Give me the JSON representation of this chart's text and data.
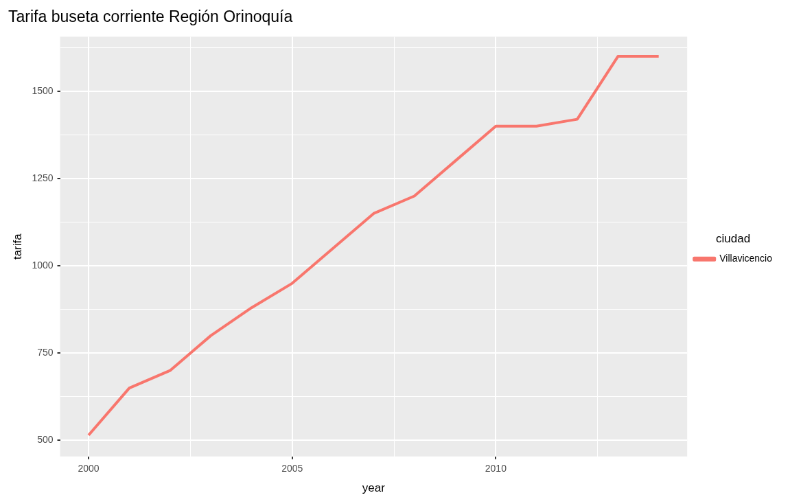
{
  "chart_data": {
    "type": "line",
    "title": "Tarifa buseta corriente Región Orinoquía",
    "xlabel": "year",
    "ylabel": "tarifa",
    "legend_title": "ciudad",
    "legend": "right",
    "grid": true,
    "marker": "none",
    "line_style": "solid",
    "x": [
      2000,
      2001,
      2002,
      2003,
      2004,
      2005,
      2006,
      2007,
      2008,
      2009,
      2010,
      2011,
      2012,
      2013,
      2014
    ],
    "series": [
      {
        "name": "Villavicencio",
        "color": "#f8766d",
        "values": [
          515,
          650,
          700,
          800,
          880,
          950,
          1050,
          1150,
          1200,
          1300,
          1400,
          1400,
          1420,
          1600,
          1600
        ]
      }
    ],
    "xlim": [
      1999.3,
      2014.7
    ],
    "ylim": [
      454,
      1656
    ],
    "xticks": [
      2000,
      {
        "value": 2002.5,
        "label": null
      },
      2005,
      {
        "value": 2007.5,
        "label": null
      },
      2010,
      {
        "value": 2012.5,
        "label": null
      }
    ],
    "yticks": [
      500,
      {
        "value": 625,
        "label": null
      },
      750,
      {
        "value": 875,
        "label": null
      },
      1000,
      {
        "value": 1125,
        "label": null
      },
      1250,
      {
        "value": 1375,
        "label": null
      },
      1500,
      {
        "value": 1625,
        "label": null
      }
    ]
  }
}
